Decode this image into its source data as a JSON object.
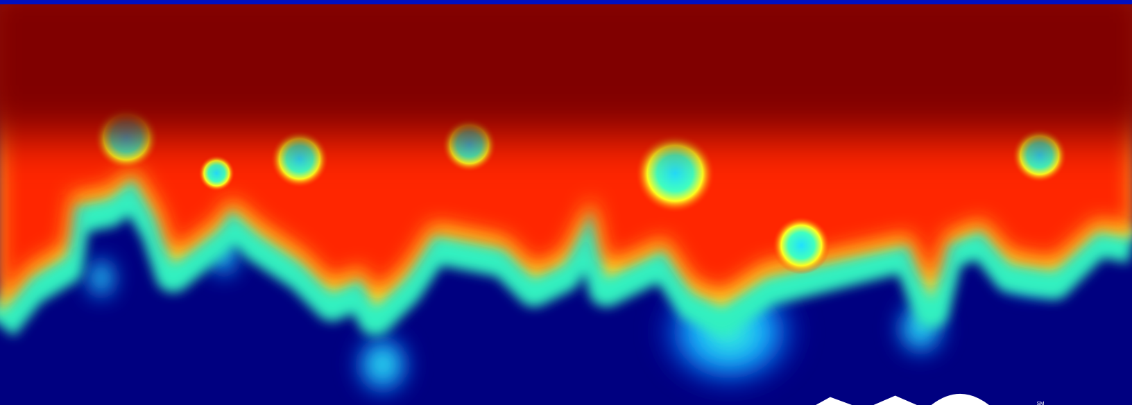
{
  "logo": {
    "mark": "SM"
  }
}
